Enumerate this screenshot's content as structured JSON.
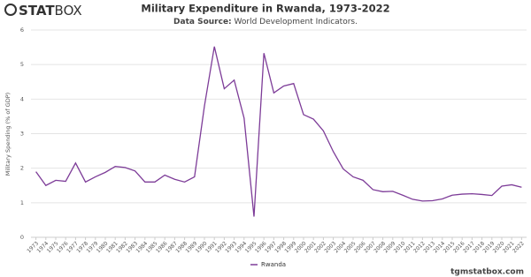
{
  "chart_data": {
    "type": "line",
    "title": "Military Expenditure in Rwanda, 1973-2022",
    "subtitle": {
      "label": "Data Source:",
      "text": "World Development Indicators."
    },
    "logo": {
      "bold": "STAT",
      "light": "BOX"
    },
    "source_url": "tgmstatbox.com",
    "y_label": "Military Spending (% of GDP)",
    "x": [
      1973,
      1974,
      1975,
      1976,
      1977,
      1978,
      1979,
      1980,
      1981,
      1982,
      1983,
      1984,
      1985,
      1986,
      1987,
      1988,
      1989,
      1990,
      1991,
      1992,
      1993,
      1994,
      1995,
      1996,
      1997,
      1998,
      1999,
      2000,
      2001,
      2002,
      2003,
      2004,
      2005,
      2006,
      2007,
      2008,
      2009,
      2010,
      2011,
      2012,
      2013,
      2014,
      2015,
      2016,
      2017,
      2018,
      2019,
      2020,
      2021,
      2022
    ],
    "series": [
      {
        "name": "Rwanda",
        "color": "#7d3c98",
        "values": [
          1.9,
          1.5,
          1.65,
          1.62,
          2.15,
          1.6,
          1.75,
          1.88,
          2.05,
          2.02,
          1.92,
          1.6,
          1.6,
          1.8,
          1.68,
          1.6,
          1.75,
          3.8,
          5.52,
          4.3,
          4.55,
          3.45,
          0.6,
          5.33,
          4.18,
          4.38,
          4.45,
          3.55,
          3.42,
          3.08,
          2.48,
          1.98,
          1.75,
          1.65,
          1.38,
          1.32,
          1.33,
          1.22,
          1.1,
          1.05,
          1.06,
          1.11,
          1.22,
          1.25,
          1.26,
          1.24,
          1.21,
          1.48,
          1.52,
          1.45
        ]
      }
    ],
    "xlim": [
      1972.5,
      2022.5
    ],
    "xticks": [
      1973,
      1974,
      1975,
      1976,
      1977,
      1978,
      1979,
      1980,
      1981,
      1982,
      1983,
      1984,
      1985,
      1986,
      1987,
      1988,
      1989,
      1990,
      1991,
      1992,
      1993,
      1994,
      1995,
      1996,
      1997,
      1998,
      1999,
      2000,
      2001,
      2002,
      2003,
      2004,
      2005,
      2006,
      2007,
      2008,
      2009,
      2010,
      2011,
      2012,
      2013,
      2014,
      2015,
      2016,
      2017,
      2018,
      2019,
      2020,
      2021,
      2022
    ],
    "ylim": [
      0,
      6
    ],
    "yticks": [
      0,
      1,
      2,
      3,
      4,
      5,
      6
    ],
    "grid": true,
    "legend": "bottom"
  }
}
